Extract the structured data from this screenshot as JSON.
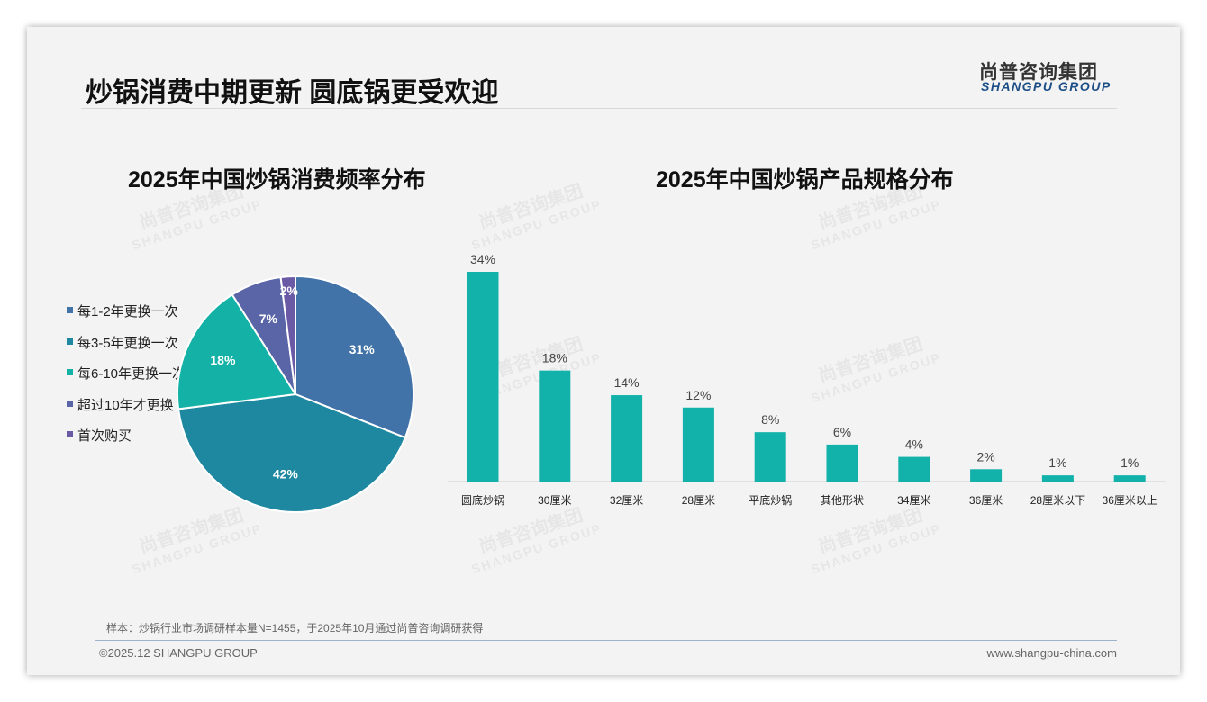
{
  "header": {
    "title": "炒锅消费中期更新 圆底锅更受欢迎",
    "logo_cn": "尚普咨询集团",
    "logo_en": "SHANGPU GROUP"
  },
  "watermark": {
    "cn": "尚普咨询集团",
    "en": "SHANGPU GROUP"
  },
  "chart_data": [
    {
      "type": "pie",
      "title": "2025年中国炒锅消费频率分布",
      "labels": [
        "每1-2年更换一次",
        "每3-5年更换一次",
        "每6-10年更换一次",
        "超过10年才更换",
        "首次购买"
      ],
      "values": [
        31,
        42,
        18,
        7,
        2
      ],
      "value_labels": [
        "31%",
        "42%",
        "18%",
        "7%",
        "2%"
      ],
      "colors": [
        "#4172a8",
        "#1e88a0",
        "#13b1a6",
        "#5a65a8",
        "#6a5aa6"
      ],
      "legend": "left"
    },
    {
      "type": "bar",
      "title": "2025年中国炒锅产品规格分布",
      "categories": [
        "圆底炒锅",
        "30厘米",
        "32厘米",
        "28厘米",
        "平底炒锅",
        "其他形状",
        "34厘米",
        "36厘米",
        "28厘米以下",
        "36厘米以上"
      ],
      "values": [
        34,
        18,
        14,
        12,
        8,
        6,
        4,
        2,
        1,
        1
      ],
      "value_labels": [
        "34%",
        "18%",
        "14%",
        "12%",
        "8%",
        "6%",
        "4%",
        "2%",
        "1%",
        "1%"
      ],
      "color": "#12b1aa",
      "ylim": [
        0,
        34
      ]
    }
  ],
  "footer": {
    "note": "样本：炒锅行业市场调研样本量N=1455，于2025年10月通过尚普咨询调研获得",
    "copyright": "©2025.12 SHANGPU GROUP",
    "url": "www.shangpu-china.com"
  }
}
